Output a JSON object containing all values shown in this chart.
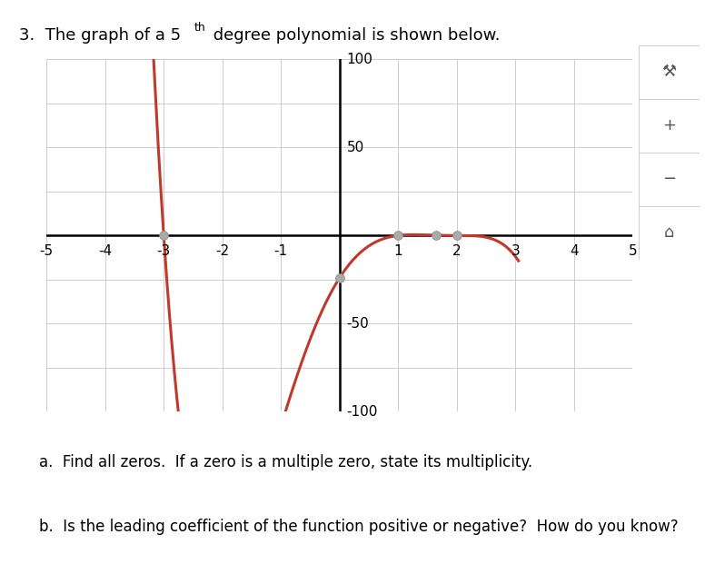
{
  "title_prefix": "3.  The graph of a 5",
  "title_sup": "th",
  "title_suffix": " degree polynomial is shown below.",
  "subtitle_a": "a.  Find all zeros.  If a zero is a multiple zero, state its multiplicity.",
  "subtitle_b": "b.  Is the leading coefficient of the function positive or negative?  How do you know?",
  "xmin": -5,
  "xmax": 5,
  "ymin": -100,
  "ymax": 100,
  "xticks": [
    -5,
    -4,
    -3,
    -2,
    -1,
    0,
    1,
    2,
    3,
    4,
    5
  ],
  "yticks": [
    -100,
    -50,
    50,
    100
  ],
  "ytick_labels": [
    "-100",
    "-50",
    "50",
    "100"
  ],
  "curve_color": "#c0392b",
  "point_color": "#aaaaaa",
  "background_color": "#ffffff",
  "grid_color": "#cccccc",
  "grid_minor_color": "#e0e0e0",
  "dot_x": [
    -3,
    0,
    1,
    1.65,
    2
  ],
  "nav_icons": [
    "⚙",
    "+",
    "−",
    "⌂"
  ],
  "poly_scale": -1.0,
  "x_start": -4.65,
  "x_end": 3.05
}
